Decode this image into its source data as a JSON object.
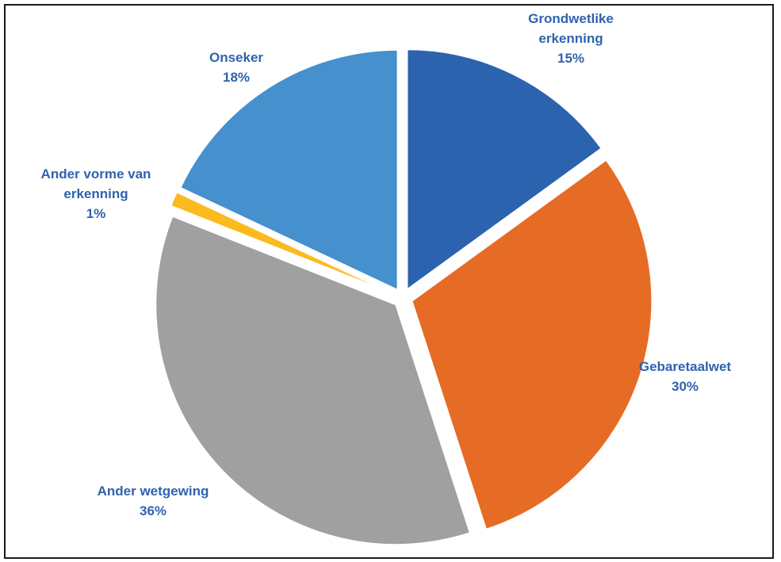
{
  "chart_data": {
    "type": "pie",
    "title": "",
    "slices": [
      {
        "label": [
          "Grondwetlike",
          "erkenning"
        ],
        "percent_label": "15%",
        "value": 15,
        "color": "#2b63ae"
      },
      {
        "label": [
          "Gebaretaalwet"
        ],
        "percent_label": "30%",
        "value": 30,
        "color": "#e66b24"
      },
      {
        "label": [
          "Ander wetgewing"
        ],
        "percent_label": "36%",
        "value": 36,
        "color": "#a0a0a0"
      },
      {
        "label": [
          "Ander vorme van",
          "erkenning"
        ],
        "percent_label": "1%",
        "value": 1,
        "color": "#fbbb1e"
      },
      {
        "label": [
          "Onseker"
        ],
        "percent_label": "18%",
        "value": 18,
        "color": "#4590cd"
      }
    ],
    "label_color": "#2f63ad",
    "start_angle_deg": 0,
    "direction": "clockwise"
  }
}
